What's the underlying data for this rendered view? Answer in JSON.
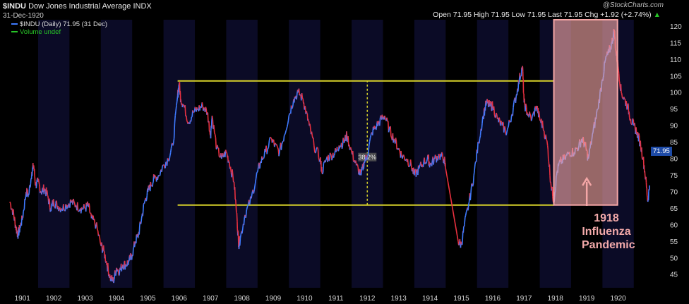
{
  "header": {
    "symbol": "$INDU",
    "name": "Dow Jones Industrial Average",
    "exchange": "INDX",
    "date": "31-Dec-1920",
    "brand": "@StockCharts.com",
    "quote": {
      "open_label": "Open",
      "open": "71.95",
      "high_label": "High",
      "high": "71.95",
      "low_label": "Low",
      "low": "71.95",
      "last_label": "Last",
      "last": "71.95",
      "chg_label": "Chg",
      "chg": "+1.92 (+2.74%)",
      "chg_arrow": "▲"
    }
  },
  "legend": {
    "series": "$INDU (Daily) 71.95 (31 Dec)",
    "volume": "Volume undef"
  },
  "colors": {
    "background": "#000000",
    "band_dark": "#0b0b26",
    "band_light": "#000000",
    "up": "#3f7bff",
    "down": "#e8303f",
    "channel": "#d8d22a",
    "highlight": "#f4a6a6"
  },
  "annotation": {
    "fib_label": "38.2%",
    "callout_lines": [
      "1918",
      "Influenza",
      "Pandemic"
    ],
    "last_value": "71.95"
  },
  "chart_data": {
    "type": "line",
    "title": "$INDU Dow Jones Industrial Average INDX",
    "xlabel": "",
    "ylabel": "",
    "x_ticks": [
      "1901",
      "1902",
      "1903",
      "1904",
      "1905",
      "1906",
      "1907",
      "1908",
      "1909",
      "1910",
      "1911",
      "1912",
      "1913",
      "1914",
      "1915",
      "1916",
      "1917",
      "1918",
      "1919",
      "1920"
    ],
    "y_ticks": [
      45,
      50,
      55,
      60,
      65,
      70,
      75,
      80,
      85,
      90,
      95,
      100,
      105,
      110,
      115,
      120
    ],
    "x_range": [
      1900.6,
      1921.0
    ],
    "ylim": [
      41,
      122
    ],
    "grid": false,
    "legend_position": "top-left",
    "series": [
      {
        "name": "$INDU (Daily)",
        "points": [
          [
            1900.6,
            67
          ],
          [
            1900.7,
            64
          ],
          [
            1900.78,
            60
          ],
          [
            1900.85,
            57
          ],
          [
            1900.92,
            59
          ],
          [
            1901.0,
            62
          ],
          [
            1901.12,
            70
          ],
          [
            1901.2,
            69
          ],
          [
            1901.3,
            76
          ],
          [
            1901.36,
            78
          ],
          [
            1901.42,
            72
          ],
          [
            1901.5,
            73
          ],
          [
            1901.6,
            70
          ],
          [
            1901.7,
            71
          ],
          [
            1901.8,
            69
          ],
          [
            1901.9,
            65
          ],
          [
            1902.0,
            67
          ],
          [
            1902.1,
            66
          ],
          [
            1902.25,
            65
          ],
          [
            1902.4,
            66
          ],
          [
            1902.55,
            67
          ],
          [
            1902.7,
            66
          ],
          [
            1902.85,
            65
          ],
          [
            1903.0,
            65
          ],
          [
            1903.1,
            66
          ],
          [
            1903.2,
            62
          ],
          [
            1903.35,
            60
          ],
          [
            1903.5,
            54
          ],
          [
            1903.6,
            52
          ],
          [
            1903.7,
            48
          ],
          [
            1903.8,
            44
          ],
          [
            1903.9,
            43
          ],
          [
            1904.0,
            47
          ],
          [
            1904.1,
            46
          ],
          [
            1904.2,
            48
          ],
          [
            1904.3,
            48
          ],
          [
            1904.4,
            49
          ],
          [
            1904.5,
            51
          ],
          [
            1904.6,
            55
          ],
          [
            1904.7,
            57
          ],
          [
            1904.8,
            62
          ],
          [
            1904.9,
            67
          ],
          [
            1905.0,
            70
          ],
          [
            1905.1,
            72
          ],
          [
            1905.2,
            74
          ],
          [
            1905.35,
            75
          ],
          [
            1905.5,
            78
          ],
          [
            1905.65,
            80
          ],
          [
            1905.8,
            84
          ],
          [
            1905.95,
            99
          ],
          [
            1906.0,
            103
          ],
          [
            1906.05,
            98
          ],
          [
            1906.15,
            96
          ],
          [
            1906.3,
            91
          ],
          [
            1906.45,
            94
          ],
          [
            1906.6,
            95
          ],
          [
            1906.75,
            96
          ],
          [
            1906.9,
            94
          ],
          [
            1907.0,
            87
          ],
          [
            1907.05,
            93
          ],
          [
            1907.2,
            83
          ],
          [
            1907.35,
            80
          ],
          [
            1907.5,
            82
          ],
          [
            1907.6,
            79
          ],
          [
            1907.75,
            73
          ],
          [
            1907.85,
            61
          ],
          [
            1907.9,
            54
          ],
          [
            1907.95,
            56
          ],
          [
            1908.1,
            63
          ],
          [
            1908.3,
            68
          ],
          [
            1908.5,
            76
          ],
          [
            1908.6,
            79
          ],
          [
            1908.75,
            82
          ],
          [
            1908.95,
            86
          ],
          [
            1909.05,
            84
          ],
          [
            1909.2,
            82
          ],
          [
            1909.35,
            87
          ],
          [
            1909.5,
            93
          ],
          [
            1909.65,
            98
          ],
          [
            1909.8,
            100
          ],
          [
            1909.95,
            98
          ],
          [
            1910.05,
            94
          ],
          [
            1910.15,
            90
          ],
          [
            1910.3,
            84
          ],
          [
            1910.5,
            80
          ],
          [
            1910.55,
            76
          ],
          [
            1910.7,
            80
          ],
          [
            1910.85,
            81
          ],
          [
            1911.0,
            82
          ],
          [
            1911.1,
            84
          ],
          [
            1911.25,
            85
          ],
          [
            1911.35,
            87
          ],
          [
            1911.5,
            82
          ],
          [
            1911.65,
            78
          ],
          [
            1911.8,
            75
          ],
          [
            1911.9,
            79
          ],
          [
            1912.0,
            81
          ],
          [
            1912.15,
            88
          ],
          [
            1912.3,
            90
          ],
          [
            1912.45,
            92
          ],
          [
            1912.55,
            93
          ],
          [
            1912.7,
            89
          ],
          [
            1912.85,
            86
          ],
          [
            1913.0,
            83
          ],
          [
            1913.1,
            81
          ],
          [
            1913.25,
            80
          ],
          [
            1913.4,
            78
          ],
          [
            1913.5,
            75
          ],
          [
            1913.65,
            77
          ],
          [
            1913.8,
            79
          ],
          [
            1913.95,
            80
          ],
          [
            1914.0,
            78
          ],
          [
            1914.15,
            80
          ],
          [
            1914.3,
            81
          ],
          [
            1914.45,
            80
          ],
          [
            1914.5,
            77
          ],
          [
            1914.9,
            55
          ],
          [
            1915.0,
            54
          ],
          [
            1915.1,
            60
          ],
          [
            1915.25,
            67
          ],
          [
            1915.4,
            75
          ],
          [
            1915.55,
            85
          ],
          [
            1915.7,
            93
          ],
          [
            1915.8,
            97
          ],
          [
            1915.9,
            96
          ],
          [
            1916.0,
            96
          ],
          [
            1916.15,
            92
          ],
          [
            1916.3,
            90
          ],
          [
            1916.45,
            88
          ],
          [
            1916.6,
            93
          ],
          [
            1916.75,
            99
          ],
          [
            1916.85,
            104
          ],
          [
            1916.95,
            108
          ],
          [
            1917.0,
            97
          ],
          [
            1917.1,
            94
          ],
          [
            1917.25,
            92
          ],
          [
            1917.4,
            96
          ],
          [
            1917.5,
            92
          ],
          [
            1917.6,
            90
          ],
          [
            1917.75,
            84
          ],
          [
            1917.85,
            73
          ],
          [
            1917.95,
            67
          ],
          [
            1918.05,
            76
          ],
          [
            1918.15,
            79
          ],
          [
            1918.3,
            80
          ],
          [
            1918.45,
            82
          ],
          [
            1918.6,
            82
          ],
          [
            1918.75,
            84
          ],
          [
            1918.85,
            86
          ],
          [
            1918.95,
            84
          ],
          [
            1919.05,
            80
          ],
          [
            1919.2,
            88
          ],
          [
            1919.35,
            95
          ],
          [
            1919.5,
            104
          ],
          [
            1919.6,
            110
          ],
          [
            1919.7,
            112
          ],
          [
            1919.8,
            115
          ],
          [
            1919.88,
            119
          ],
          [
            1919.92,
            113
          ],
          [
            1920.0,
            108
          ],
          [
            1920.1,
            100
          ],
          [
            1920.2,
            98
          ],
          [
            1920.3,
            96
          ],
          [
            1920.4,
            92
          ],
          [
            1920.5,
            90
          ],
          [
            1920.6,
            88
          ],
          [
            1920.7,
            85
          ],
          [
            1920.8,
            80
          ],
          [
            1920.88,
            74
          ],
          [
            1920.95,
            67
          ],
          [
            1921.0,
            71.95
          ]
        ]
      }
    ],
    "horizontal_lines": [
      {
        "y": 103.5,
        "x_from": 1905.95,
        "x_to": 1917.95
      },
      {
        "y": 66,
        "x_from": 1905.95,
        "x_to": 1917.95
      }
    ],
    "vertical_guide": {
      "x": 1912.0,
      "y_from": 66,
      "y_to": 103.5,
      "label": "38.2%",
      "label_y": 80.5
    },
    "highlight_region": {
      "x_from": 1917.95,
      "x_to": 1919.98,
      "y_from": 66,
      "y_to": 122
    },
    "callout_arrow_x": 1919.0
  }
}
